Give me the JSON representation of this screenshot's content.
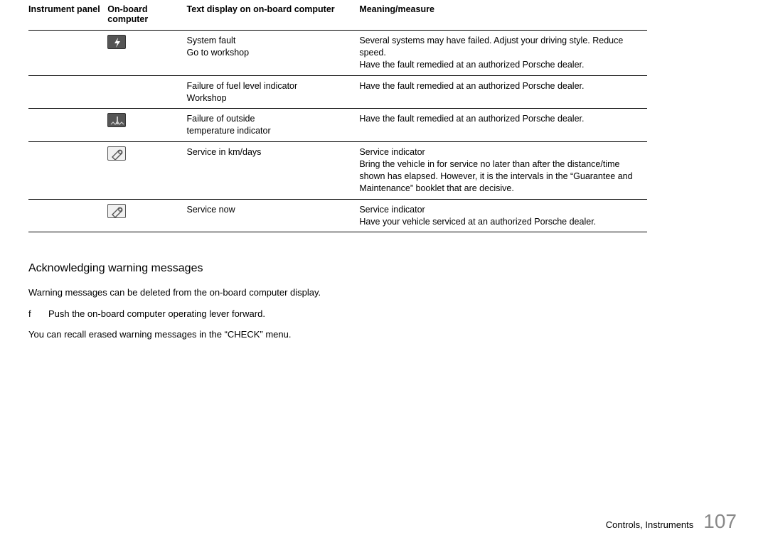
{
  "table": {
    "headers": {
      "instrument_panel": "Instrument panel",
      "on_board_computer": "On-board computer",
      "text_display": "Text display on on-board computer",
      "meaning": "Meaning/measure"
    },
    "rows": [
      {
        "icon": "lightning-icon",
        "text_line1": "System fault",
        "text_line2": "Go to workshop",
        "meaning_line1": "Several systems may have failed. Adjust your driving style. Reduce speed.",
        "meaning_line2": "Have the fault remedied at an authorized Porsche dealer."
      },
      {
        "icon": "",
        "text_line1": "Failure of fuel level indicator",
        "text_line2": "Workshop",
        "meaning_line1": "Have the fault remedied at an authorized Porsche dealer.",
        "meaning_line2": ""
      },
      {
        "icon": "temperature-icon",
        "text_line1": "Failure of outside",
        "text_line2": "temperature indicator",
        "meaning_line1": "Have the fault remedied at an authorized Porsche dealer.",
        "meaning_line2": ""
      },
      {
        "icon": "wrench-icon",
        "text_line1": "Service in km/days",
        "text_line2": "",
        "meaning_line1": "Service indicator",
        "meaning_line2": "Bring the vehicle in for service no later than after the distance/time shown has elapsed. However, it is the intervals in the “Guarantee and Maintenance” booklet that are decisive."
      },
      {
        "icon": "wrench-icon",
        "text_line1": "Service now",
        "text_line2": "",
        "meaning_line1": "Service indicator",
        "meaning_line2": "Have your vehicle serviced at an authorized Porsche dealer."
      }
    ]
  },
  "section_heading": "Acknowledging warning messages",
  "para1": "Warning messages can be deleted from the on-board computer display.",
  "step_glyph": "f",
  "step_text": "Push the on-board computer operating lever forward.",
  "para2": "You can recall erased warning messages in the “CHECK” menu.",
  "footer_section": "Controls, Instruments",
  "footer_page": "107",
  "icons": {
    "lightning-icon": {
      "bg": "dark",
      "svg": "<svg width='26' height='20' viewBox='0 0 26 20'><polygon points='14,3 9,11 13,11 11,17 17,8 13,8' fill='#fff'/></svg>"
    },
    "temperature-icon": {
      "bg": "dark",
      "svg": "<svg width='26' height='20' viewBox='0 0 26 20'><path d='M4 15 L7 12 L10 15 L13 12 L16 15 L19 12 L22 15' stroke='#ccc' stroke-width='1.2' fill='none'/><rect x='12' y='4' width='2' height='8' fill='#ccc'/><circle cx='13' cy='13' r='2' fill='#ccc'/></svg>"
    },
    "wrench-icon": {
      "bg": "light",
      "svg": "<svg width='26' height='20' viewBox='0 0 26 20'><path d='M6 14 L14 6 A3 3 0 1 1 18 10 L10 18 Z' fill='none' stroke='#555' stroke-width='1.4'/><circle cx='17' cy='7' r='2.2' fill='none' stroke='#555' stroke-width='1.4'/></svg>"
    }
  }
}
